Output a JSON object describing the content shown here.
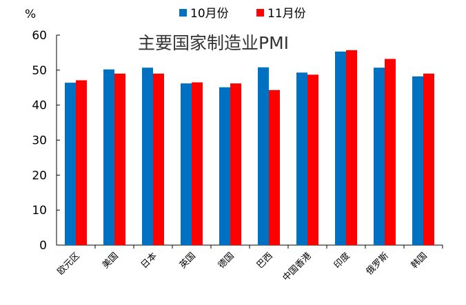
{
  "chart_data": {
    "type": "bar",
    "title": "主要国家制造业PMI",
    "ylabel": "%",
    "ylim": [
      0,
      60
    ],
    "yticks": [
      0,
      10,
      20,
      30,
      40,
      50,
      60
    ],
    "grid": false,
    "legend_position": "top",
    "categories": [
      "欧元区",
      "美国",
      "日本",
      "英国",
      "德国",
      "巴西",
      "中国香港",
      "印度",
      "俄罗斯",
      "韩国"
    ],
    "series": [
      {
        "name": "10月份",
        "color": "#0070C0",
        "values": [
          46.4,
          50.2,
          50.7,
          46.2,
          45.1,
          50.8,
          49.3,
          55.3,
          50.7,
          48.2
        ]
      },
      {
        "name": "11月份",
        "color": "#FF0000",
        "values": [
          47.1,
          49.0,
          49.0,
          46.5,
          46.2,
          44.3,
          48.7,
          55.7,
          53.2,
          49.0
        ]
      }
    ]
  }
}
